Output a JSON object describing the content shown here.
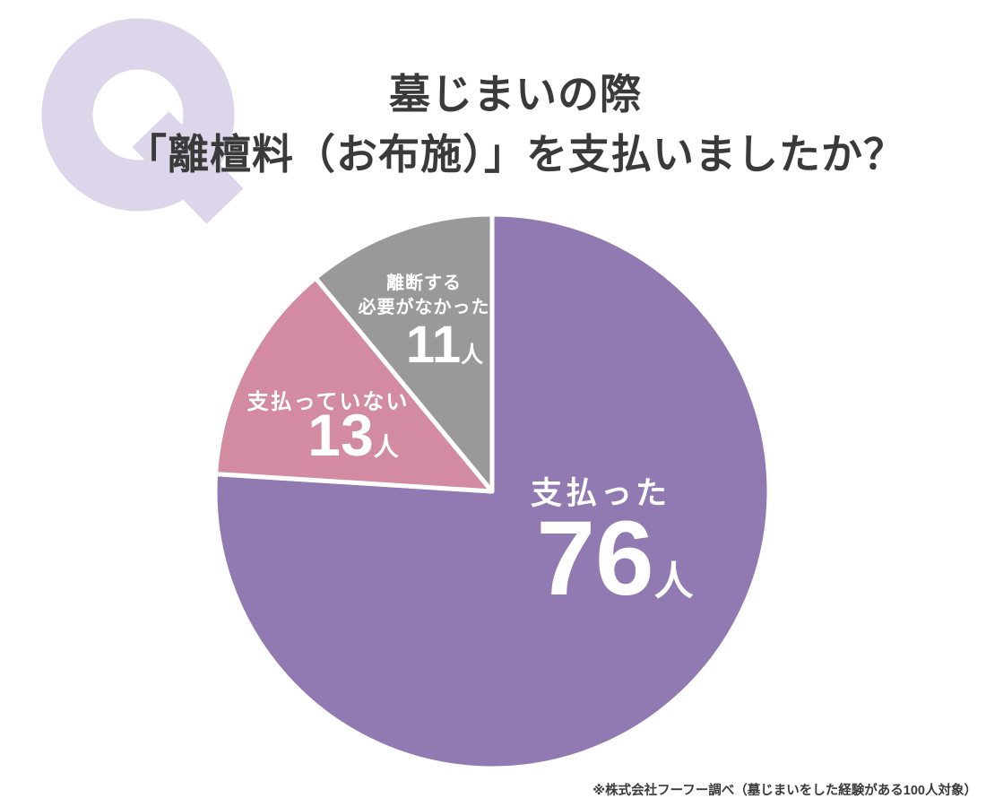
{
  "q_mark": "Q",
  "title": {
    "line1": "墓じまいの際",
    "line2": "「離檀料（お布施）」を支払いましたか？"
  },
  "labels": {
    "paid": {
      "name": "支払った",
      "value": "76",
      "unit": "人"
    },
    "not_paid": {
      "name": "支払っていない",
      "value": "13",
      "unit": "人"
    },
    "no_need": {
      "name_line1": "離断する",
      "name_line2": "必要がなかった",
      "value": "11",
      "unit": "人"
    }
  },
  "source_note": "※株式会社フーフー調べ（墓じまいをした経験がある100人対象）",
  "colors": {
    "paid": "#9179B1",
    "not_paid": "#D28BA0",
    "no_need": "#999999",
    "q_mark": "#DDD5E9",
    "title_text": "#3A3A3A",
    "label_text": "#FFFFFF",
    "slice_border": "#FFFFFF"
  },
  "chart_data": {
    "type": "pie",
    "title": "墓じまいの際「離檀料（お布施）」を支払いましたか？",
    "unit": "人",
    "total": 100,
    "direction": "clockwise",
    "start_angle_deg": 0,
    "slice_border_color": "#FFFFFF",
    "legend_position": "labels-on-slices",
    "slices": [
      {
        "id": "paid",
        "label": "支払った",
        "value": 76,
        "color": "#9179B1"
      },
      {
        "id": "not-paid",
        "label": "支払っていない",
        "value": 13,
        "color": "#D28BA0"
      },
      {
        "id": "no-need",
        "label": "離断する必要がなかった",
        "value": 11,
        "color": "#999999"
      }
    ]
  }
}
